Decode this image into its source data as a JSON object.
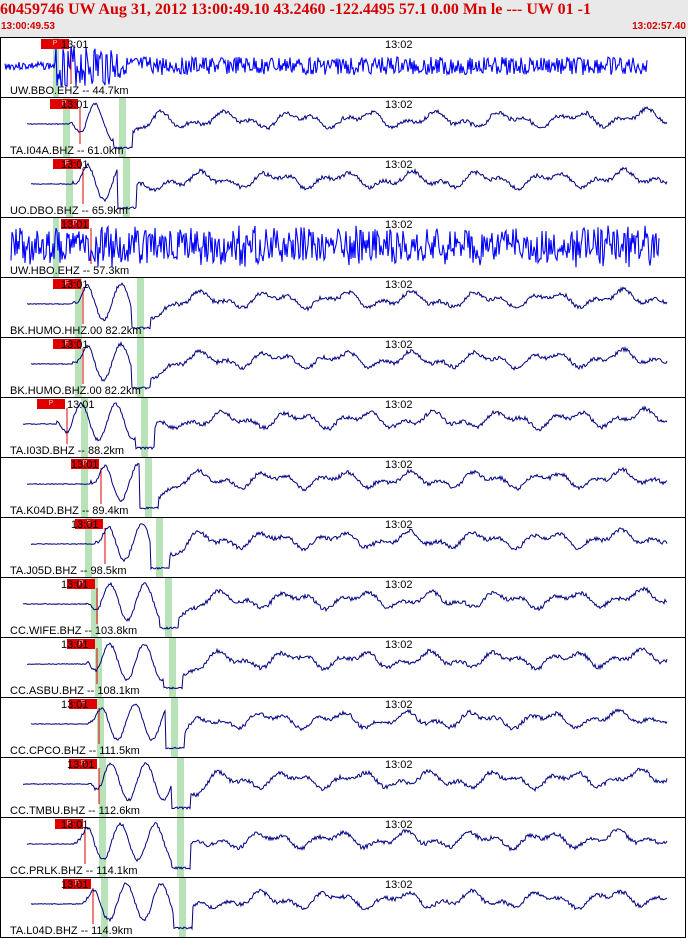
{
  "header": {
    "title": "60459746 UW Aug 31, 2012 13:00:49.10    43.2460 -122.4495 57.1 0.00 Mn le --- UW 01  -1",
    "start_time": "13:00:49.53",
    "end_time": "13:02:57.40"
  },
  "time_ticks": [
    "13:01",
    "13:02"
  ],
  "pick_label": "P",
  "colors": {
    "header_text": "#d40000",
    "header_bg": "#e9e9e9",
    "short_period": "#0000ff",
    "broadband": "#000080",
    "pick": "#e00000",
    "window": "#b8e2b8"
  },
  "traces": [
    {
      "label": "UW.BBO.EHZ -- 44.7km",
      "type": "short",
      "seed": 3
    },
    {
      "label": "TA.I04A.BHZ -- 61.0km",
      "type": "broad",
      "seed": 7
    },
    {
      "label": "UO.DBO.BHZ -- 65.9km",
      "type": "broad",
      "seed": 11
    },
    {
      "label": "UW.HBO.EHZ -- 57.3km",
      "type": "short",
      "seed": 13
    },
    {
      "label": "BK.HUMO.HHZ.00 82.2km",
      "type": "broad",
      "seed": 17
    },
    {
      "label": "BK.HUMO.BHZ.00 82.2km",
      "type": "broad",
      "seed": 17
    },
    {
      "label": "TA.I03D.BHZ -- 88.2km",
      "type": "broad",
      "seed": 19
    },
    {
      "label": "TA.K04D.BHZ -- 89.4km",
      "type": "broad",
      "seed": 23
    },
    {
      "label": "TA.J05D.BHZ -- 98.5km",
      "type": "broad",
      "seed": 29
    },
    {
      "label": "CC.WIFE.BHZ -- 103.8km",
      "type": "broad",
      "seed": 31
    },
    {
      "label": "CC.ASBU.BHZ -- 108.1km",
      "type": "broad",
      "seed": 37
    },
    {
      "label": "CC.CPCO.BHZ -- 111.5km",
      "type": "broad",
      "seed": 41
    },
    {
      "label": "CC.TMBU.BHZ -- 112.6km",
      "type": "broad",
      "seed": 43
    },
    {
      "label": "CC.PRLK.BHZ -- 114.1km",
      "type": "broad",
      "seed": 47
    },
    {
      "label": "TA.L04D.BHZ -- 114.9km",
      "type": "broad",
      "seed": 53
    }
  ]
}
